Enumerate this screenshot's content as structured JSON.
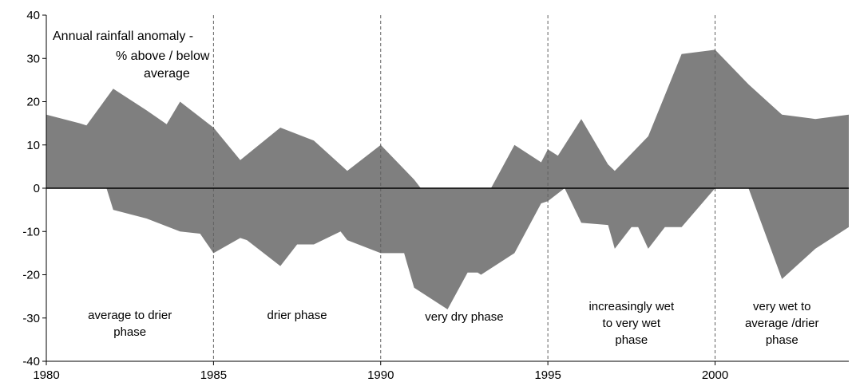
{
  "chart_data": {
    "type": "area",
    "title_lines": [
      "Annual rainfall anomaly -",
      "% above / below",
      "average"
    ],
    "xlabel": "",
    "ylabel": "",
    "xlim": [
      1980,
      2004
    ],
    "ylim": [
      -40,
      40
    ],
    "x_ticks": [
      "1980",
      "1985",
      "1990",
      "1995",
      "2000"
    ],
    "y_ticks": [
      "40",
      "30",
      "20",
      "10",
      "0",
      "-10",
      "-20",
      "-30",
      "-40"
    ],
    "fill_color": "#7f7f7f",
    "grid": false,
    "phase_dividers": [
      1985,
      1990,
      1995,
      2000
    ],
    "phases": [
      {
        "lines": [
          "average to drier",
          "phase"
        ]
      },
      {
        "lines": [
          "drier phase"
        ]
      },
      {
        "lines": [
          "very dry phase"
        ]
      },
      {
        "lines": [
          "increasingly wet",
          "to very wet",
          "phase"
        ]
      },
      {
        "lines": [
          "very wet to",
          "average /drier",
          "phase"
        ]
      }
    ],
    "series": [
      {
        "values_upper": [
          [
            1980,
            17
          ],
          [
            1981,
            15
          ],
          [
            1981.2,
            14.5
          ],
          [
            1982,
            23
          ],
          [
            1983,
            18
          ],
          [
            1983.6,
            14.8
          ],
          [
            1984,
            20
          ],
          [
            1985,
            14
          ],
          [
            1985.8,
            6.5
          ],
          [
            1987,
            14
          ],
          [
            1988,
            11
          ],
          [
            1989,
            4
          ],
          [
            1990,
            10
          ],
          [
            1991,
            2
          ],
          [
            1991.2,
            0
          ],
          [
            1993.3,
            0
          ],
          [
            1994,
            10
          ],
          [
            1994.8,
            6
          ],
          [
            1995,
            9
          ],
          [
            1995.3,
            7.5
          ],
          [
            1996,
            16
          ],
          [
            1996.8,
            5.5
          ],
          [
            1997,
            4
          ],
          [
            1998,
            12
          ],
          [
            1999,
            31
          ],
          [
            2000,
            32
          ],
          [
            2001,
            24
          ],
          [
            2002,
            17
          ],
          [
            2003,
            16
          ],
          [
            2004,
            17
          ]
        ],
        "values_lower": [
          [
            1980,
            0
          ],
          [
            1981.8,
            0
          ],
          [
            1982,
            -5
          ],
          [
            1983,
            -7
          ],
          [
            1984,
            -10
          ],
          [
            1984.6,
            -10.5
          ],
          [
            1985,
            -15
          ],
          [
            1985.8,
            -11.5
          ],
          [
            1986,
            -12
          ],
          [
            1987,
            -18
          ],
          [
            1987.5,
            -13
          ],
          [
            1988,
            -13
          ],
          [
            1988.8,
            -10
          ],
          [
            1989,
            -12
          ],
          [
            1990,
            -15
          ],
          [
            1990.7,
            -15
          ],
          [
            1991,
            -23
          ],
          [
            1992,
            -28
          ],
          [
            1992.6,
            -19.5
          ],
          [
            1992.9,
            -19.5
          ],
          [
            1993,
            -20
          ],
          [
            1994,
            -15
          ],
          [
            1994.8,
            -3.5
          ],
          [
            1995,
            -3
          ],
          [
            1995.5,
            0
          ],
          [
            1996,
            -8
          ],
          [
            1996.8,
            -8.5
          ],
          [
            1997,
            -14
          ],
          [
            1997.5,
            -9
          ],
          [
            1997.7,
            -9
          ],
          [
            1998,
            -14
          ],
          [
            1998.5,
            -9
          ],
          [
            1999,
            -9
          ],
          [
            2000,
            0
          ],
          [
            2001,
            0
          ],
          [
            2002,
            -21
          ],
          [
            2003,
            -14
          ],
          [
            2004,
            -9
          ]
        ]
      }
    ]
  }
}
